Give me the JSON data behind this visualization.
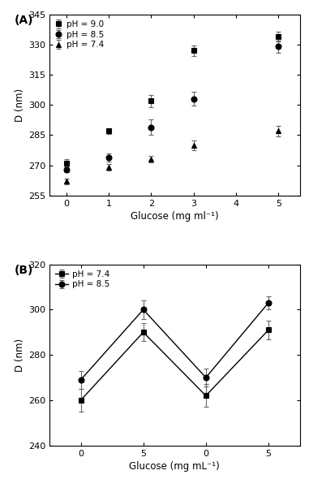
{
  "panel_A": {
    "xlabel": "Glucose (mg ml⁻¹)",
    "ylabel": "D (nm)",
    "xlim": [
      -0.4,
      5.5
    ],
    "ylim": [
      255,
      345
    ],
    "yticks": [
      255,
      270,
      285,
      300,
      315,
      330,
      345
    ],
    "xticks": [
      0,
      1,
      2,
      3,
      4,
      5
    ],
    "series": [
      {
        "label": "pH = 9.0",
        "marker": "s",
        "x": [
          0,
          1,
          2,
          3,
          5
        ],
        "y": [
          271,
          287,
          302,
          327,
          334
        ],
        "yerr": [
          2,
          1.5,
          3,
          2.5,
          2.5
        ]
      },
      {
        "label": "pH = 8.5",
        "marker": "o",
        "x": [
          0,
          1,
          2,
          3,
          5
        ],
        "y": [
          268,
          274,
          289,
          303,
          329
        ],
        "yerr": [
          1.5,
          2,
          4,
          3.5,
          3
        ]
      },
      {
        "label": "pH = 7.4",
        "marker": "^",
        "x": [
          0,
          1,
          2,
          3,
          5
        ],
        "y": [
          262,
          269,
          273,
          280,
          287
        ],
        "yerr": [
          1.5,
          1.5,
          1.5,
          2.5,
          2.5
        ]
      }
    ],
    "color": "#000000",
    "label": "(A)"
  },
  "panel_B": {
    "xlabel": "Glucose (mg mL⁻¹)",
    "ylabel": "D (nm)",
    "xlim": [
      -0.5,
      3.5
    ],
    "ylim": [
      240,
      320
    ],
    "yticks": [
      240,
      260,
      280,
      300,
      320
    ],
    "xtick_positions": [
      0,
      1,
      2,
      3
    ],
    "xtick_labels": [
      "0",
      "5",
      "0",
      "5"
    ],
    "series": [
      {
        "label": "pH = 7.4",
        "marker": "s",
        "x": [
          0,
          1,
          2,
          3
        ],
        "y": [
          260,
          290,
          262,
          291
        ],
        "yerr": [
          5,
          4,
          5,
          4
        ]
      },
      {
        "label": "pH = 8.5",
        "marker": "o",
        "x": [
          0,
          1,
          2,
          3
        ],
        "y": [
          269,
          300,
          270,
          303
        ],
        "yerr": [
          4,
          4,
          4,
          3
        ]
      }
    ],
    "color": "#000000",
    "label": "(B)"
  }
}
